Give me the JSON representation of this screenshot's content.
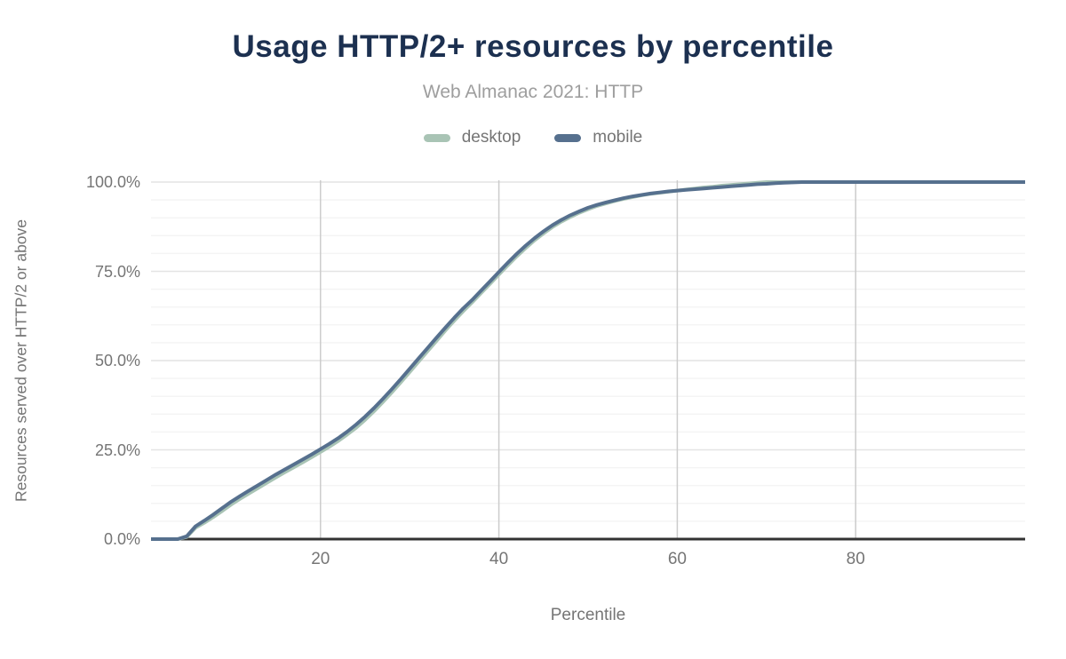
{
  "header": {
    "title": "Usage HTTP/2+ resources by percentile",
    "subtitle": "Web Almanac 2021: HTTP",
    "title_color": "#1c3050",
    "subtitle_color": "#9e9e9e"
  },
  "legend": {
    "position": "top",
    "text_color": "#757575",
    "items": [
      {
        "label": "desktop",
        "color": "#a9c4b5"
      },
      {
        "label": "mobile",
        "color": "#56708e"
      }
    ]
  },
  "chart_data": {
    "type": "line",
    "title": "Usage HTTP/2+ resources by percentile",
    "subtitle": "Web Almanac 2021: HTTP",
    "xlabel": "Percentile",
    "ylabel": "Resources served over HTTP/2 or above",
    "xlim": [
      1,
      99
    ],
    "ylim": [
      0,
      100
    ],
    "x_step": 1,
    "x_ticks": [
      {
        "value": 20,
        "label": "20"
      },
      {
        "value": 40,
        "label": "40"
      },
      {
        "value": 60,
        "label": "60"
      },
      {
        "value": 80,
        "label": "80"
      }
    ],
    "y_ticks": [
      {
        "value": 0,
        "label": "0.0%"
      },
      {
        "value": 25,
        "label": "25.0%"
      },
      {
        "value": 50,
        "label": "50.0%"
      },
      {
        "value": 75,
        "label": "75.0%"
      },
      {
        "value": 100,
        "label": "100.0%"
      }
    ],
    "y_minor_grid_step": 5,
    "grid": {
      "vertical_color": "#cccccc",
      "major_color": "#e4e4e4",
      "minor_color": "#f4f4f4",
      "axis_line_color": "#333333"
    },
    "legend_position": "top",
    "series": [
      {
        "name": "desktop",
        "color": "#a9c4b5",
        "values": [
          0,
          0,
          0,
          0,
          0.6,
          3.2,
          4.6,
          6.2,
          7.9,
          9.7,
          11.3,
          12.8,
          14.3,
          15.8,
          17.3,
          18.7,
          20.1,
          21.5,
          22.9,
          24.4,
          25.9,
          27.5,
          29.3,
          31.2,
          33.4,
          35.8,
          38.4,
          41.1,
          43.9,
          46.8,
          49.7,
          52.6,
          55.5,
          58.4,
          61.2,
          63.8,
          66.3,
          68.9,
          71.5,
          74.1,
          76.7,
          79.2,
          81.5,
          83.7,
          85.6,
          87.4,
          88.9,
          90.2,
          91.4,
          92.4,
          93.3,
          94,
          94.7,
          95.3,
          95.8,
          96.3,
          96.7,
          97,
          97.3,
          97.6,
          97.9,
          98.2,
          98.5,
          98.7,
          99,
          99.2,
          99.4,
          99.6,
          99.8,
          100,
          100,
          100,
          100,
          100,
          100,
          100,
          100,
          100,
          100,
          100,
          100,
          100,
          100,
          100,
          100,
          100,
          100,
          100,
          100,
          100,
          100,
          100,
          100,
          100,
          100,
          100,
          100,
          100,
          100
        ]
      },
      {
        "name": "mobile",
        "color": "#56708e",
        "values": [
          0,
          0,
          0,
          0,
          0.8,
          3.6,
          5.2,
          6.9,
          8.7,
          10.5,
          12.1,
          13.6,
          15.1,
          16.6,
          18.1,
          19.5,
          20.9,
          22.3,
          23.7,
          25.2,
          26.7,
          28.3,
          30.1,
          32.1,
          34.3,
          36.7,
          39.3,
          42,
          44.8,
          47.7,
          50.6,
          53.5,
          56.4,
          59.2,
          62,
          64.6,
          67,
          69.6,
          72.2,
          74.8,
          77.4,
          79.9,
          82.2,
          84.3,
          86.2,
          87.9,
          89.4,
          90.7,
          91.8,
          92.8,
          93.6,
          94.3,
          94.9,
          95.5,
          96,
          96.4,
          96.8,
          97.1,
          97.4,
          97.6,
          97.8,
          98,
          98.2,
          98.4,
          98.6,
          98.8,
          99,
          99.2,
          99.4,
          99.5,
          99.7,
          99.8,
          99.9,
          100,
          100,
          100,
          100,
          100,
          100,
          100,
          100,
          100,
          100,
          100,
          100,
          100,
          100,
          100,
          100,
          100,
          100,
          100,
          100,
          100,
          100,
          100,
          100,
          100,
          100
        ]
      }
    ],
    "axis_text_color": "#757575"
  }
}
